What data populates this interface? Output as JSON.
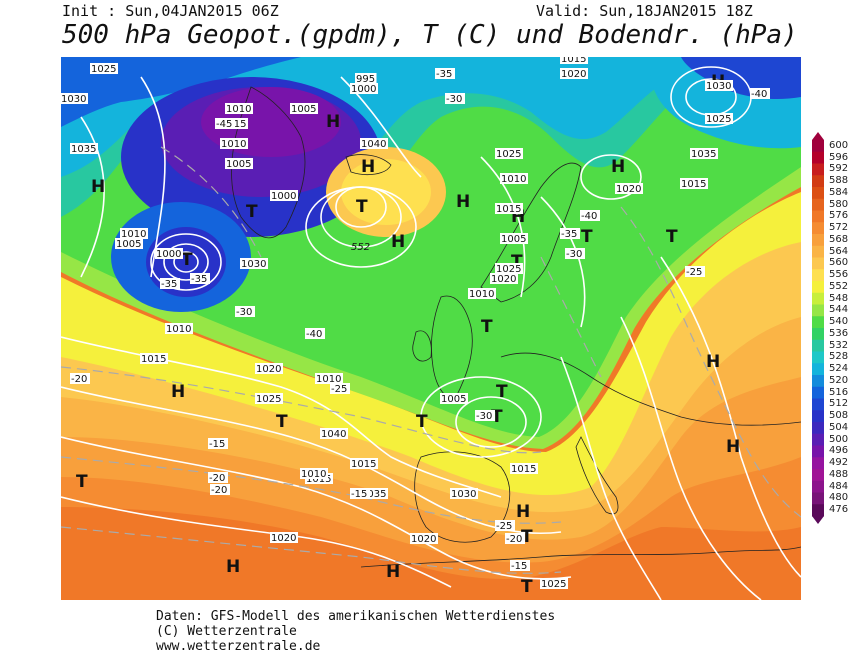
{
  "header": {
    "init": "Init : Sun,04JAN2015 06Z",
    "valid": "Valid: Sun,18JAN2015 18Z",
    "title": "500 hPa Geopot.(gpdm), T (C) und Bodendr. (hPa)"
  },
  "colorbar": {
    "labels": [
      "600",
      "596",
      "592",
      "588",
      "584",
      "580",
      "576",
      "572",
      "568",
      "564",
      "560",
      "556",
      "552",
      "548",
      "544",
      "540",
      "536",
      "532",
      "528",
      "524",
      "520",
      "516",
      "512",
      "508",
      "504",
      "500",
      "496",
      "492",
      "488",
      "484",
      "480",
      "476"
    ],
    "colors": [
      "#a0003c",
      "#b4002a",
      "#c81e1e",
      "#d23c14",
      "#dc5014",
      "#e6641e",
      "#f07828",
      "#f58c32",
      "#f8a03c",
      "#fab446",
      "#fcc850",
      "#fee050",
      "#f5f03c",
      "#c8ef3c",
      "#96e646",
      "#50dc46",
      "#32d264",
      "#28c8a0",
      "#1ec8c8",
      "#14b4dc",
      "#148cdc",
      "#1464dc",
      "#1e46d2",
      "#2832c8",
      "#3c28be",
      "#5a1eb4",
      "#7814aa",
      "#9614a0",
      "#a01496",
      "#8c148c",
      "#781478",
      "#5a0a5a"
    ]
  },
  "map": {
    "pressure_centers": [
      {
        "label": "H"
      },
      {
        "label": "H"
      },
      {
        "label": "H"
      },
      {
        "label": "H"
      },
      {
        "label": "H"
      },
      {
        "label": "H"
      },
      {
        "label": "H"
      },
      {
        "label": "H"
      },
      {
        "label": "H"
      },
      {
        "label": "H"
      },
      {
        "label": "H"
      },
      {
        "label": "H"
      },
      {
        "label": "H"
      },
      {
        "label": "H"
      },
      {
        "label": "T"
      },
      {
        "label": "T"
      },
      {
        "label": "T"
      },
      {
        "label": "T"
      },
      {
        "label": "T"
      },
      {
        "label": "T"
      },
      {
        "label": "T"
      },
      {
        "label": "T"
      },
      {
        "label": "T"
      },
      {
        "label": "T"
      },
      {
        "label": "T"
      },
      {
        "label": "T"
      },
      {
        "label": "T"
      },
      {
        "label": "T"
      }
    ],
    "isobar_labels": [
      "1025",
      "1030",
      "1035",
      "1015",
      "1010",
      "1005",
      "1000",
      "995",
      "1020",
      "1040",
      "1015",
      "1010",
      "1005",
      "1000",
      "1025",
      "1030",
      "1035",
      "1015",
      "1020",
      "1010",
      "1005",
      "1000",
      "1010",
      "1015",
      "1020",
      "1025",
      "1010",
      "1015",
      "1010",
      "1005",
      "1020",
      "1015",
      "1020",
      "1025",
      "1010",
      "1015",
      "1005",
      "1010",
      "1020",
      "1025",
      "1030",
      "1035",
      "1040",
      "1030",
      "1015",
      "1025"
    ],
    "temperature_labels": [
      "-35",
      "-30",
      "-40",
      "-40",
      "-35",
      "-45",
      "-30",
      "-25",
      "-20",
      "-15",
      "-20",
      "-15",
      "-30",
      "-25",
      "-20",
      "-15",
      "-30",
      "-35",
      "-40",
      "-25",
      "-20",
      "-35"
    ],
    "geopot_label": "552"
  },
  "footer": {
    "line1": "Daten: GFS-Modell des amerikanischen Wetterdienstes",
    "line2": "(C) Wetterzentrale",
    "line3": "www.wetterzentrale.de"
  }
}
